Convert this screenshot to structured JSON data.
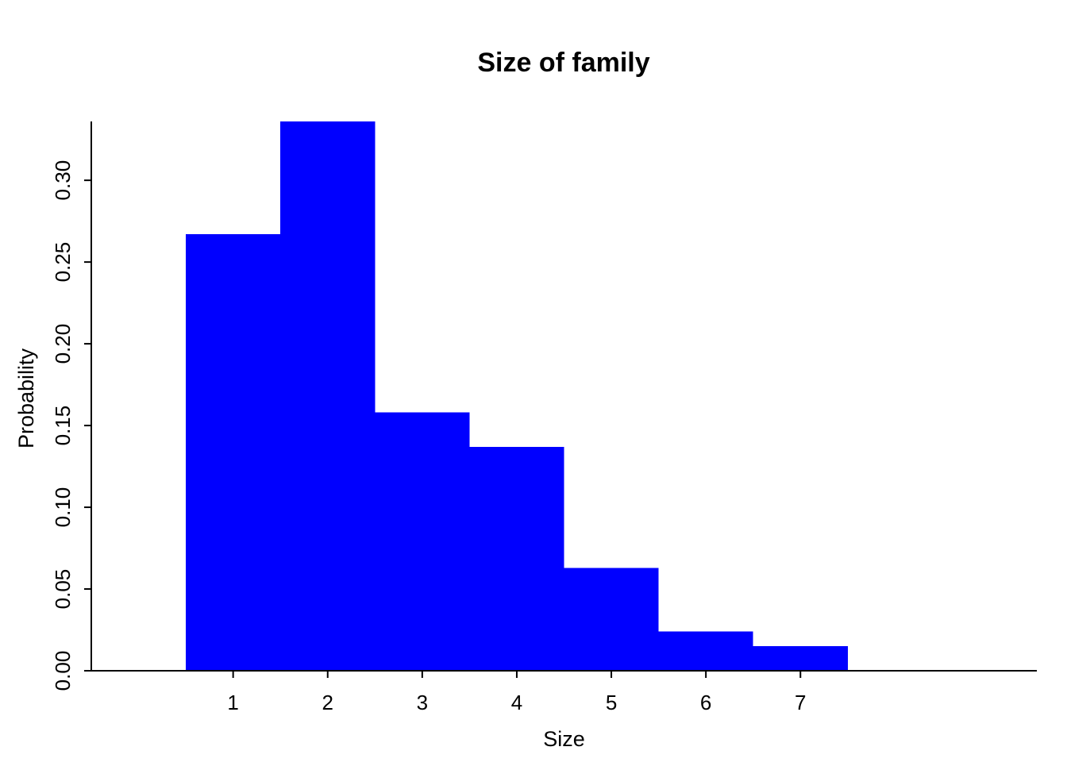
{
  "chart_data": {
    "type": "bar",
    "title": "Size of family",
    "xlabel": "Size",
    "ylabel": "Probability",
    "categories": [
      "1",
      "2",
      "3",
      "4",
      "5",
      "6",
      "7"
    ],
    "x": [
      1,
      2,
      3,
      4,
      5,
      6,
      7
    ],
    "values": [
      0.267,
      0.336,
      0.158,
      0.137,
      0.063,
      0.024,
      0.015
    ],
    "bar_color": "#0000ff",
    "xlim": [
      -0.5,
      9.5
    ],
    "ylim": [
      0,
      0.336
    ],
    "y_ticks": [
      0.0,
      0.05,
      0.1,
      0.15,
      0.2,
      0.25,
      0.3
    ],
    "y_tick_labels": [
      "0.00",
      "0.05",
      "0.10",
      "0.15",
      "0.20",
      "0.25",
      "0.30"
    ],
    "x_ticks": [
      1,
      2,
      3,
      4,
      5,
      6,
      7
    ],
    "x_tick_labels": [
      "1",
      "2",
      "3",
      "4",
      "5",
      "6",
      "7"
    ],
    "grid": false,
    "legend": "none"
  }
}
